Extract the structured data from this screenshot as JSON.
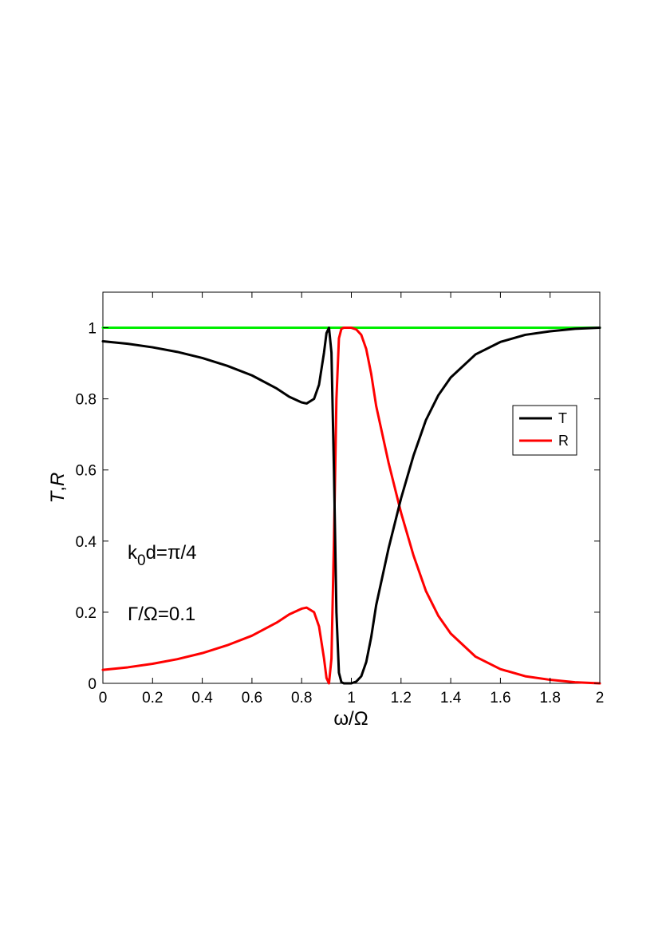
{
  "chart_data": {
    "type": "line",
    "xlabel": "ω/Ω",
    "ylabel": "T,R",
    "ylabel_parts": [
      "T",
      ",",
      "R"
    ],
    "xlim": [
      0,
      2
    ],
    "ylim": [
      0,
      1.1
    ],
    "xticks": [
      0,
      0.2,
      0.4,
      0.6,
      0.8,
      1,
      1.2,
      1.4,
      1.6,
      1.8,
      2
    ],
    "xtick_labels": [
      "0",
      "0.2",
      "0.4",
      "0.6",
      "0.8",
      "1",
      "1.2",
      "1.4",
      "1.6",
      "1.8",
      "2"
    ],
    "yticks": [
      0,
      0.2,
      0.4,
      0.6,
      0.8,
      1
    ],
    "ytick_labels": [
      "0",
      "0.2",
      "0.4",
      "0.6",
      "0.8",
      "1"
    ],
    "grid": false,
    "legend_position": "right",
    "annotations": {
      "k0d": {
        "base": "k",
        "subscript": "0",
        "rest": "d=π/4"
      },
      "gamma": {
        "text": "Γ/Ω=0.1"
      }
    },
    "series": [
      {
        "name": "T",
        "color": "#000000",
        "x": [
          0,
          0.1,
          0.2,
          0.3,
          0.4,
          0.5,
          0.6,
          0.7,
          0.75,
          0.8,
          0.82,
          0.85,
          0.87,
          0.89,
          0.9,
          0.91,
          0.92,
          0.93,
          0.94,
          0.95,
          0.96,
          0.97,
          0.98,
          1.0,
          1.02,
          1.04,
          1.06,
          1.08,
          1.1,
          1.15,
          1.2,
          1.25,
          1.3,
          1.35,
          1.4,
          1.5,
          1.6,
          1.7,
          1.8,
          1.9,
          2.0
        ],
        "y": [
          0.962,
          0.955,
          0.945,
          0.932,
          0.915,
          0.893,
          0.866,
          0.829,
          0.806,
          0.79,
          0.787,
          0.8,
          0.84,
          0.93,
          0.985,
          1.0,
          0.93,
          0.6,
          0.2,
          0.03,
          0.003,
          0.0,
          0.0,
          0.0,
          0.005,
          0.02,
          0.06,
          0.13,
          0.22,
          0.38,
          0.52,
          0.64,
          0.74,
          0.81,
          0.86,
          0.925,
          0.96,
          0.98,
          0.99,
          0.997,
          1.0
        ]
      },
      {
        "name": "R",
        "color": "#ff0000",
        "x": [
          0,
          0.1,
          0.2,
          0.3,
          0.4,
          0.5,
          0.6,
          0.7,
          0.75,
          0.8,
          0.82,
          0.85,
          0.87,
          0.89,
          0.9,
          0.91,
          0.92,
          0.93,
          0.94,
          0.95,
          0.96,
          0.97,
          0.98,
          1.0,
          1.02,
          1.04,
          1.06,
          1.08,
          1.1,
          1.15,
          1.2,
          1.25,
          1.3,
          1.35,
          1.4,
          1.5,
          1.6,
          1.7,
          1.8,
          1.9,
          2.0
        ],
        "y": [
          0.038,
          0.045,
          0.055,
          0.068,
          0.085,
          0.107,
          0.134,
          0.171,
          0.194,
          0.21,
          0.213,
          0.2,
          0.16,
          0.07,
          0.015,
          0.0,
          0.07,
          0.4,
          0.8,
          0.97,
          0.997,
          1.0,
          1.0,
          1.0,
          0.995,
          0.98,
          0.94,
          0.87,
          0.78,
          0.62,
          0.48,
          0.36,
          0.26,
          0.19,
          0.14,
          0.075,
          0.04,
          0.02,
          0.01,
          0.003,
          0.0
        ]
      },
      {
        "color": "#00ee00",
        "x": [
          0,
          2
        ],
        "y": [
          1,
          1
        ]
      }
    ]
  }
}
